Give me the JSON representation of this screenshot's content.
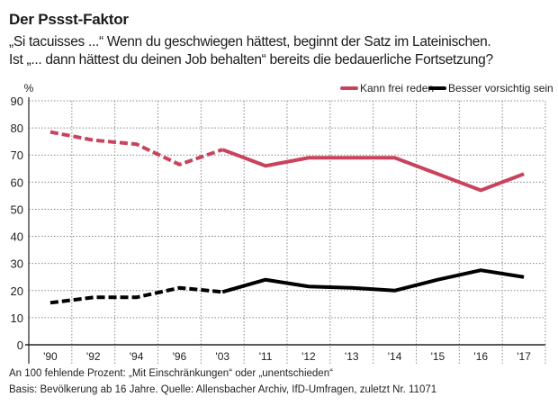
{
  "header": {
    "title": "Der Pssst-Faktor",
    "subtitle_line1": "„Si tacuisses ...“ Wenn du geschwiegen hättest, beginnt der Satz im Lateinischen.",
    "subtitle_line2": "Ist „... dann hättest du deinen Job behalten“ bereits die bedauerliche Fortsetzung?"
  },
  "footer": {
    "note": "An 100 fehlende Prozent: „Mit Einschränkungen“ oder „unentschieden“",
    "source": "Basis: Bevölkerung ab 16 Jahre. Quelle: Allensbacher Archiv, IfD-Umfragen, zuletzt Nr. 11071"
  },
  "chart_data": {
    "type": "line",
    "ylabel": "%",
    "ylim": [
      0,
      90
    ],
    "yticks": [
      0,
      10,
      20,
      30,
      40,
      50,
      60,
      70,
      80,
      90
    ],
    "grid": true,
    "legend_placement": "top-right",
    "categories": [
      "'90",
      "'92",
      "'94",
      "'96",
      "'03",
      "'11",
      "'12",
      "'13",
      "'14",
      "'15",
      "'16",
      "'17"
    ],
    "dashed_through": "'03",
    "series": [
      {
        "name": "Kann frei reden",
        "color": "#c8435b",
        "values": [
          78.5,
          75.5,
          74,
          66.5,
          72,
          66,
          69,
          69,
          69,
          63,
          57,
          63
        ]
      },
      {
        "name": "Besser vorsichtig sein",
        "color": "#000000",
        "values": [
          15.5,
          17.5,
          17.5,
          21,
          19.5,
          24,
          21.5,
          21,
          20,
          24,
          27.5,
          25
        ]
      }
    ]
  }
}
